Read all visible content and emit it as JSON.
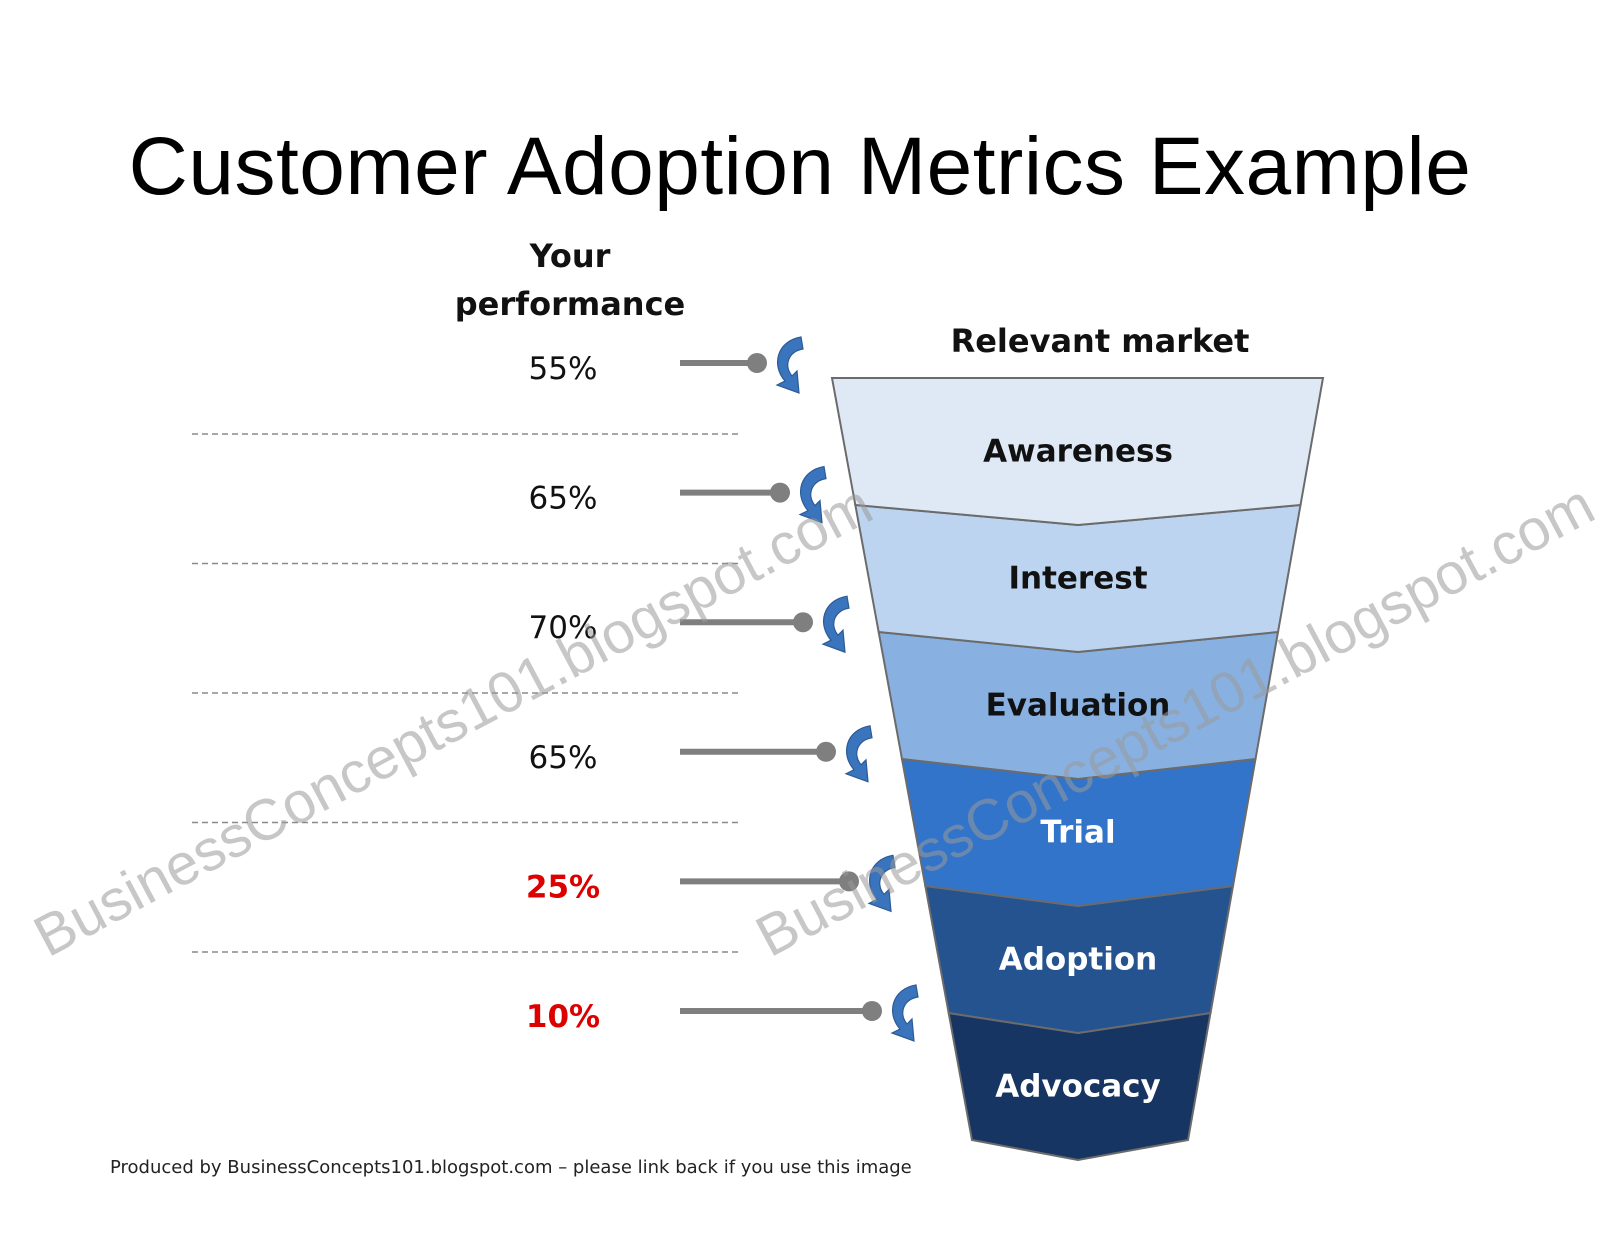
{
  "title": "Customer Adoption Metrics Example",
  "performance_heading": "Your performance",
  "market_heading": "Relevant market",
  "stages": [
    {
      "name": "Awareness",
      "performance": "55%",
      "fill": "#dfe9f6",
      "text_color": "#111111",
      "alert": false
    },
    {
      "name": "Interest",
      "performance": "65%",
      "fill": "#bcd4ef",
      "text_color": "#111111",
      "alert": false
    },
    {
      "name": "Evaluation",
      "performance": "70%",
      "fill": "#88b1e1",
      "text_color": "#111111",
      "alert": false
    },
    {
      "name": "Trial",
      "performance": "65%",
      "fill": "#3274c9",
      "text_color": "#ffffff",
      "alert": false
    },
    {
      "name": "Adoption",
      "performance": "25%",
      "fill": "#24538f",
      "text_color": "#ffffff",
      "alert": true
    },
    {
      "name": "Advocacy",
      "performance": "10%",
      "fill": "#173562",
      "text_color": "#ffffff",
      "alert": true
    }
  ],
  "colors": {
    "alert": "#dd0000",
    "normal_text": "#111111",
    "connector": "#7f7f7f",
    "arrow": "#3a74bd"
  },
  "watermark_text": "BusinessConcepts101.blogspot.com",
  "footer": "Produced by BusinessConcepts101.blogspot.com – please link back if you use this image"
}
